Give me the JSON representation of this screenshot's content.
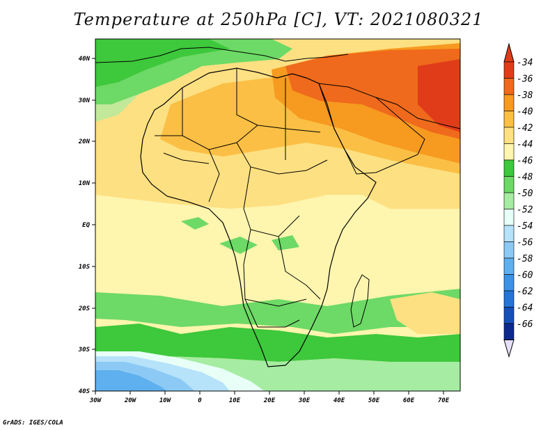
{
  "title": "Temperature at 250hPa [C], VT: 2021080321",
  "credit": "GrADS: IGES/COLA",
  "map": {
    "region": "Africa",
    "lon_range": [
      -30,
      75
    ],
    "lat_range": [
      -40,
      45
    ],
    "lon_ticks": [
      "30W",
      "20W",
      "10W",
      "0",
      "10E",
      "20E",
      "30E",
      "40E",
      "50E",
      "60E",
      "70E"
    ],
    "lat_ticks": [
      "40N",
      "30N",
      "20N",
      "10N",
      "EQ",
      "10S",
      "20S",
      "30S",
      "40S"
    ]
  },
  "colorbar": {
    "labels": [
      "-34",
      "-36",
      "-38",
      "-40",
      "-42",
      "-44",
      "-46",
      "-48",
      "-50",
      "-52",
      "-54",
      "-56",
      "-58",
      "-60",
      "-62",
      "-64",
      "-66"
    ],
    "colors": [
      "#e03c1a",
      "#ef6a1c",
      "#f79a20",
      "#fbbf45",
      "#fde082",
      "#fef5ae",
      "#3ec83c",
      "#6dd966",
      "#a6eca2",
      "#e8fff8",
      "#b6e2fa",
      "#8ccaf5",
      "#5fb0ee",
      "#3c93e6",
      "#2674d5",
      "#1450b8",
      "#0b2a8c"
    ]
  }
}
